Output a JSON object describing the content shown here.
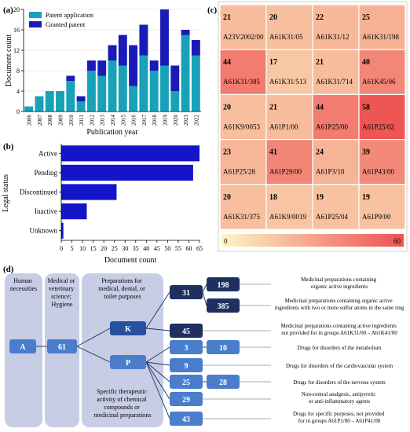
{
  "panels": {
    "a": "(a)",
    "b": "(b)",
    "c": "(c)",
    "d": "(d)"
  },
  "colors": {
    "application": "#17a2b8",
    "granted": "#1a1ab8",
    "status_bar": "#1414c8",
    "heat_low": "#fcf6c4",
    "heat_high": "#ee5050",
    "diagram_panel": "#c8cde6",
    "node_dark": "#1f3060",
    "node_mid": "#2850a0",
    "node_light": "#4a7ecc"
  },
  "chart_data": [
    {
      "type": "bar",
      "stacked": true,
      "categories": [
        "2006",
        "2007",
        "2008",
        "2009",
        "2010",
        "2011",
        "2012",
        "2013",
        "2014",
        "2015",
        "2016",
        "2017",
        "2018",
        "2019",
        "2020",
        "2021",
        "2022"
      ],
      "series": [
        {
          "name": "Patent application",
          "values": [
            1,
            3,
            4,
            4,
            6,
            2,
            8,
            7,
            10,
            9,
            5,
            11,
            8,
            9,
            4,
            15,
            11
          ]
        },
        {
          "name": "Granted patent",
          "values": [
            0,
            0,
            0,
            0,
            1,
            1,
            2,
            3,
            3,
            6,
            8,
            6,
            2,
            11,
            5,
            1,
            3
          ]
        }
      ],
      "xlabel": "Publication year",
      "ylabel": "Document count",
      "ylim": [
        0,
        20
      ],
      "yticks": [
        0,
        4,
        8,
        12,
        16,
        20
      ],
      "legend": "top-left"
    },
    {
      "type": "bar",
      "orientation": "horizontal",
      "categories": [
        "Active",
        "Pending",
        "Discontinued",
        "Inactive",
        "Unknown"
      ],
      "values": [
        65,
        62,
        26,
        12,
        1
      ],
      "xlabel": "Document count",
      "ylabel": "Legal status",
      "xlim": [
        0,
        65
      ],
      "xticks": [
        0,
        5,
        10,
        15,
        20,
        25,
        30,
        35,
        40,
        45,
        50,
        55,
        60,
        65
      ]
    },
    {
      "type": "heatmap",
      "cells": [
        [
          {
            "v": 21,
            "code": "A23V2002/00"
          },
          {
            "v": 20,
            "code": "A61K31/05"
          },
          {
            "v": 22,
            "code": "A61K31/12"
          },
          {
            "v": 25,
            "code": "A61K31/198"
          }
        ],
        [
          {
            "v": 44,
            "code": "A61K31/385"
          },
          {
            "v": 17,
            "code": "A61K31/513"
          },
          {
            "v": 21,
            "code": "A61K31/714"
          },
          {
            "v": 40,
            "code": "A61K45/06"
          }
        ],
        [
          {
            "v": 20,
            "code": "A61K9/0053"
          },
          {
            "v": 21,
            "code": "A61P1/00"
          },
          {
            "v": 44,
            "code": "A61P25/00"
          },
          {
            "v": 58,
            "code": "A61P25/02"
          }
        ],
        [
          {
            "v": 23,
            "code": "A61P25/28"
          },
          {
            "v": 41,
            "code": "A61P29/00"
          },
          {
            "v": 24,
            "code": "A61P3/10"
          },
          {
            "v": 39,
            "code": "A61P43/00"
          }
        ],
        [
          {
            "v": 20,
            "code": "A61K31/375"
          },
          {
            "v": 18,
            "code": "A61K9/0019"
          },
          {
            "v": 19,
            "code": "A61P25/04"
          },
          {
            "v": 19,
            "code": "A61P9/00"
          }
        ]
      ],
      "colorbar": {
        "min": "0",
        "max": "60",
        "range": [
          0,
          60
        ]
      }
    }
  ],
  "diagram": {
    "columns": {
      "human": [
        "Human",
        "necessities"
      ],
      "medical": [
        "Medical or",
        "veterinary",
        "science;",
        "Hygiene"
      ],
      "preparations": [
        "Preparations for",
        "medical, dental, or",
        "toilet purposes"
      ],
      "specific": [
        "Specific therapeutic",
        "activity of chemical",
        "compounds or",
        "medicinal preparations"
      ]
    },
    "nodes": {
      "A": "A",
      "n61": "61",
      "K": "K",
      "P": "P",
      "n31": "31",
      "n45": "45",
      "n3": "3",
      "n9": "9",
      "n25": "25",
      "n29": "29",
      "n43": "43",
      "n198": "198",
      "n385": "385",
      "n10": "10",
      "n28": "28"
    },
    "descriptions": {
      "d198": [
        "Medicinal preparations containing",
        "organic active ingredients"
      ],
      "d385": [
        "Medicinal preparations containing organic active",
        "ingredients with two or more sulfur atoms in the same ring"
      ],
      "d45": [
        "Medicinal preparations containing active ingredients",
        "not provided for in groups A61K31/00 – A61K41/00"
      ],
      "d10": [
        "Drugs for disorders of the metabolism"
      ],
      "d9": [
        "Drugs for disorders of the cardiovascular system"
      ],
      "d28": [
        "Drugs for disorders of the nervous system"
      ],
      "d29": [
        "Non-central analgesic, antipyretic",
        "or anti-inflammatory agents"
      ],
      "d43": [
        "Drugs for specific purposes, not provided",
        "for in groups A61P1/00 – A61P41/00"
      ]
    }
  }
}
